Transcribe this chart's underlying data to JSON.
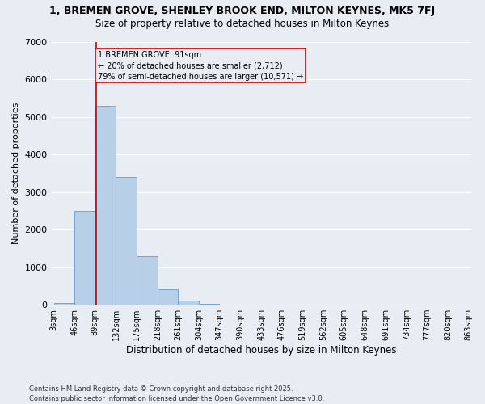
{
  "title_line1": "1, BREMEN GROVE, SHENLEY BROOK END, MILTON KEYNES, MK5 7FJ",
  "title_line2": "Size of property relative to detached houses in Milton Keynes",
  "xlabel": "Distribution of detached houses by size in Milton Keynes",
  "ylabel": "Number of detached properties",
  "background_color": "#e8edf4",
  "bar_color": "#b8cfe8",
  "bar_edge_color": "#6699cc",
  "grid_color": "#ffffff",
  "bins": [
    3,
    46,
    89,
    132,
    175,
    218,
    261,
    304,
    347,
    390,
    433,
    476,
    519,
    562,
    605,
    648,
    691,
    734,
    777,
    820,
    863
  ],
  "bin_labels": [
    "3sqm",
    "46sqm",
    "89sqm",
    "132sqm",
    "175sqm",
    "218sqm",
    "261sqm",
    "304sqm",
    "347sqm",
    "390sqm",
    "433sqm",
    "476sqm",
    "519sqm",
    "562sqm",
    "605sqm",
    "648sqm",
    "691sqm",
    "734sqm",
    "777sqm",
    "820sqm",
    "863sqm"
  ],
  "bar_heights": [
    50,
    2500,
    5300,
    3400,
    1300,
    400,
    100,
    30,
    0,
    0,
    0,
    0,
    0,
    0,
    0,
    0,
    0,
    0,
    0,
    0
  ],
  "ylim": [
    0,
    7000
  ],
  "yticks": [
    0,
    1000,
    2000,
    3000,
    4000,
    5000,
    6000,
    7000
  ],
  "property_size": 91,
  "property_line_color": "#cc0000",
  "annotation_line1": "1 BREMEN GROVE: 91sqm",
  "annotation_line2": "← 20% of detached houses are smaller (2,712)",
  "annotation_line3": "79% of semi-detached houses are larger (10,571) →",
  "annotation_box_color": "#cc0000",
  "footnote1": "Contains HM Land Registry data © Crown copyright and database right 2025.",
  "footnote2": "Contains public sector information licensed under the Open Government Licence v3.0."
}
